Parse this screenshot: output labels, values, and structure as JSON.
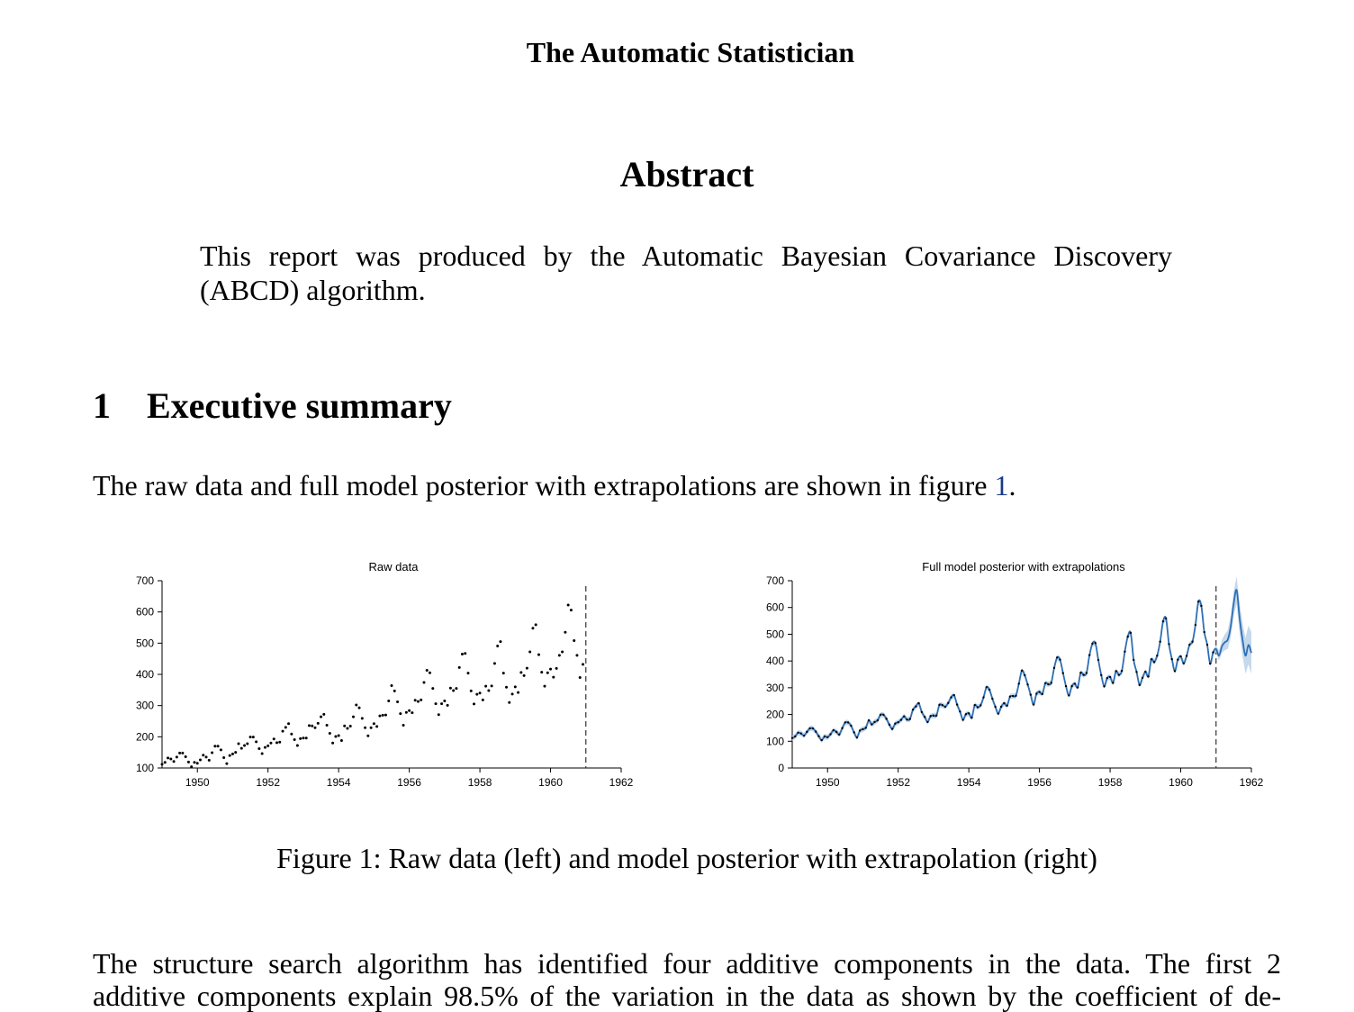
{
  "header": {
    "title": "The Automatic Statistician"
  },
  "abstract": {
    "title": "Abstract",
    "text": "This report was produced by the Automatic Bayesian Covariance Discovery (ABCD) algorithm."
  },
  "section": {
    "number": "1",
    "title": "Executive summary"
  },
  "para1": {
    "text_before": "The raw data and full model posterior with extrapolations are shown in figure ",
    "figure_ref": "1",
    "text_after": "."
  },
  "figure": {
    "caption": "Figure 1: Raw data (left) and model posterior with extrapolation (right)"
  },
  "para2": {
    "line1": "The structure search algorithm has identified four additive components in the data.  The first 2",
    "line2": "additive components explain 98.5% of the variation in the data as shown by the coefficient of de-"
  },
  "colors": {
    "posterior_line": "#2e6fb5",
    "posterior_band": "#b7cfe8",
    "points": "#000000"
  },
  "chart_data": [
    {
      "type": "scatter",
      "title": "Raw data",
      "xlim": [
        1949,
        1962
      ],
      "ylim": [
        100,
        700
      ],
      "xticks": [
        1950,
        1952,
        1954,
        1956,
        1958,
        1960,
        1962
      ],
      "yticks": [
        100,
        200,
        300,
        400,
        500,
        600,
        700
      ],
      "vline_x": 1961,
      "grid": false,
      "series": [
        {
          "x": [
            1949.0,
            1949.083,
            1949.167,
            1949.25,
            1949.333,
            1949.417,
            1949.5,
            1949.583,
            1949.667,
            1949.75,
            1949.833,
            1949.917,
            1950.0,
            1950.083,
            1950.167,
            1950.25,
            1950.333,
            1950.417,
            1950.5,
            1950.583,
            1950.667,
            1950.75,
            1950.833,
            1950.917,
            1951.0,
            1951.083,
            1951.167,
            1951.25,
            1951.333,
            1951.417,
            1951.5,
            1951.583,
            1951.667,
            1951.75,
            1951.833,
            1951.917,
            1952.0,
            1952.083,
            1952.167,
            1952.25,
            1952.333,
            1952.417,
            1952.5,
            1952.583,
            1952.667,
            1952.75,
            1952.833,
            1952.917,
            1953.0,
            1953.083,
            1953.167,
            1953.25,
            1953.333,
            1953.417,
            1953.5,
            1953.583,
            1953.667,
            1953.75,
            1953.833,
            1953.917,
            1954.0,
            1954.083,
            1954.167,
            1954.25,
            1954.333,
            1954.417,
            1954.5,
            1954.583,
            1954.667,
            1954.75,
            1954.833,
            1954.917,
            1955.0,
            1955.083,
            1955.167,
            1955.25,
            1955.333,
            1955.417,
            1955.5,
            1955.583,
            1955.667,
            1955.75,
            1955.833,
            1955.917,
            1956.0,
            1956.083,
            1956.167,
            1956.25,
            1956.333,
            1956.417,
            1956.5,
            1956.583,
            1956.667,
            1956.75,
            1956.833,
            1956.917,
            1957.0,
            1957.083,
            1957.167,
            1957.25,
            1957.333,
            1957.417,
            1957.5,
            1957.583,
            1957.667,
            1957.75,
            1957.833,
            1957.917,
            1958.0,
            1958.083,
            1958.167,
            1958.25,
            1958.333,
            1958.417,
            1958.5,
            1958.583,
            1958.667,
            1958.75,
            1958.833,
            1958.917,
            1959.0,
            1959.083,
            1959.167,
            1959.25,
            1959.333,
            1959.417,
            1959.5,
            1959.583,
            1959.667,
            1959.75,
            1959.833,
            1959.917,
            1960.0,
            1960.083,
            1960.167,
            1960.25,
            1960.333,
            1960.417,
            1960.5,
            1960.583,
            1960.667,
            1960.75,
            1960.833,
            1960.917
          ],
          "y": [
            112,
            118,
            132,
            129,
            121,
            135,
            148,
            148,
            136,
            119,
            104,
            118,
            115,
            126,
            141,
            135,
            125,
            149,
            170,
            170,
            158,
            133,
            114,
            140,
            145,
            150,
            178,
            163,
            172,
            178,
            199,
            199,
            184,
            162,
            146,
            166,
            171,
            180,
            193,
            181,
            183,
            218,
            230,
            242,
            209,
            191,
            172,
            194,
            196,
            196,
            236,
            235,
            229,
            243,
            264,
            272,
            237,
            211,
            180,
            201,
            204,
            188,
            235,
            227,
            234,
            264,
            302,
            293,
            259,
            229,
            203,
            229,
            242,
            233,
            267,
            269,
            270,
            315,
            364,
            347,
            312,
            274,
            237,
            278,
            284,
            277,
            317,
            313,
            318,
            374,
            413,
            405,
            355,
            306,
            271,
            306,
            315,
            301,
            356,
            348,
            355,
            422,
            465,
            467,
            404,
            347,
            305,
            336,
            340,
            318,
            362,
            348,
            363,
            435,
            491,
            505,
            404,
            359,
            310,
            337,
            360,
            342,
            406,
            396,
            420,
            472,
            548,
            559,
            463,
            407,
            362,
            405,
            417,
            391,
            419,
            461,
            472,
            535,
            622,
            606,
            508,
            461,
            390,
            432
          ]
        }
      ]
    },
    {
      "type": "line",
      "title": "Full model posterior with extrapolations",
      "xlim": [
        1949,
        1962
      ],
      "ylim": [
        0,
        700
      ],
      "xticks": [
        1950,
        1952,
        1954,
        1956,
        1958,
        1960,
        1962
      ],
      "yticks": [
        0,
        100,
        200,
        300,
        400,
        500,
        600,
        700
      ],
      "vline_x": 1961,
      "grid": false,
      "series": [
        {
          "name": "",
          "kind": "posterior-mean-with-extrapolation",
          "extrapolation_peak_approx": 665,
          "extrapolation_end_x": 1962
        }
      ]
    }
  ]
}
